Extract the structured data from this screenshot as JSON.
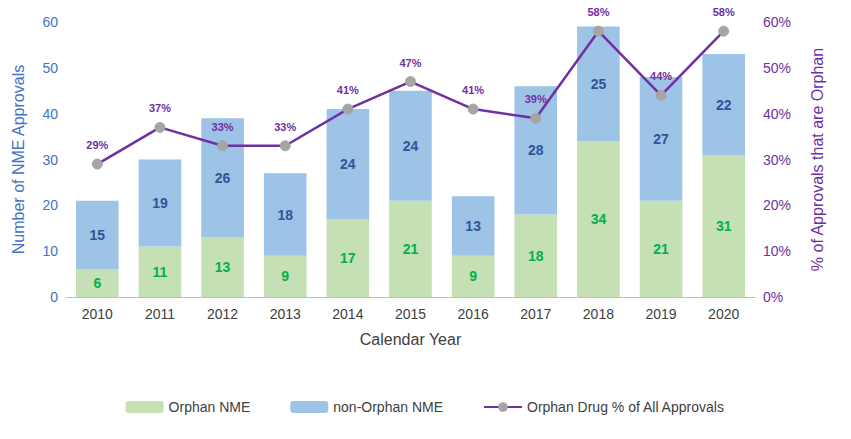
{
  "chart_data": {
    "type": "bar",
    "stacked": true,
    "data_labels": true,
    "grid": false,
    "legend": "bottom",
    "x_label": "Calendar Year",
    "y_label": "Number of NME Approvals",
    "y2_label": "% of Approvals that are Orphan",
    "categories": [
      "2010",
      "2011",
      "2012",
      "2013",
      "2014",
      "2015",
      "2016",
      "2017",
      "2018",
      "2019",
      "2020"
    ],
    "ylim": [
      0,
      60
    ],
    "yticks": [
      0,
      10,
      20,
      30,
      40,
      50,
      60
    ],
    "y2lim": [
      0,
      60
    ],
    "y2ticks": [
      {
        "value": 0,
        "label": "0%"
      },
      {
        "value": 10,
        "label": "10%"
      },
      {
        "value": 20,
        "label": "20%"
      },
      {
        "value": 30,
        "label": "30%"
      },
      {
        "value": 40,
        "label": "40%"
      },
      {
        "value": 50,
        "label": "50%"
      },
      {
        "value": 60,
        "label": "60%"
      }
    ],
    "series": [
      {
        "name": "Orphan NME",
        "type": "bar",
        "color": "#c5e0b4",
        "values": [
          6,
          11,
          13,
          9,
          17,
          21,
          9,
          18,
          34,
          21,
          31
        ]
      },
      {
        "name": "non-Orphan NME",
        "type": "bar",
        "color": "#9dc3e6",
        "values": [
          15,
          19,
          26,
          18,
          24,
          24,
          13,
          28,
          25,
          27,
          22
        ]
      },
      {
        "name": "Orphan Drug % of All Approvals",
        "type": "line",
        "axis": "y2",
        "color": "#7030a0",
        "marker": "circle",
        "values": [
          29,
          37,
          33,
          33,
          41,
          47,
          41,
          39,
          58,
          44,
          58
        ],
        "value_labels": [
          "29%",
          "37%",
          "33%",
          "33%",
          "41%",
          "47%",
          "41%",
          "39%",
          "58%",
          "44%",
          "58%"
        ]
      }
    ]
  }
}
